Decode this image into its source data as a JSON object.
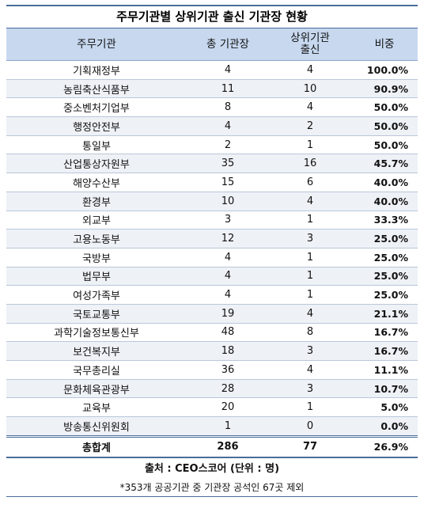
{
  "title": "주무기관별 상위기관 출신 기관장 현황",
  "headers": {
    "ministry": "주무기관",
    "total": "총 기관장",
    "upper_line1": "상위기관",
    "upper_line2": "출신",
    "ratio": "비중"
  },
  "rows": [
    {
      "ministry": "기획재정부",
      "total": "4",
      "upper": "4",
      "ratio": "100.0%"
    },
    {
      "ministry": "농림축산식품부",
      "total": "11",
      "upper": "10",
      "ratio": "90.9%"
    },
    {
      "ministry": "중소벤처기업부",
      "total": "8",
      "upper": "4",
      "ratio": "50.0%"
    },
    {
      "ministry": "행정안전부",
      "total": "4",
      "upper": "2",
      "ratio": "50.0%"
    },
    {
      "ministry": "통일부",
      "total": "2",
      "upper": "1",
      "ratio": "50.0%"
    },
    {
      "ministry": "산업통상자원부",
      "total": "35",
      "upper": "16",
      "ratio": "45.7%"
    },
    {
      "ministry": "해양수산부",
      "total": "15",
      "upper": "6",
      "ratio": "40.0%"
    },
    {
      "ministry": "환경부",
      "total": "10",
      "upper": "4",
      "ratio": "40.0%"
    },
    {
      "ministry": "외교부",
      "total": "3",
      "upper": "1",
      "ratio": "33.3%"
    },
    {
      "ministry": "고용노동부",
      "total": "12",
      "upper": "3",
      "ratio": "25.0%"
    },
    {
      "ministry": "국방부",
      "total": "4",
      "upper": "1",
      "ratio": "25.0%"
    },
    {
      "ministry": "법무부",
      "total": "4",
      "upper": "1",
      "ratio": "25.0%"
    },
    {
      "ministry": "여성가족부",
      "total": "4",
      "upper": "1",
      "ratio": "25.0%"
    },
    {
      "ministry": "국토교통부",
      "total": "19",
      "upper": "4",
      "ratio": "21.1%"
    },
    {
      "ministry": "과학기술정보통신부",
      "total": "48",
      "upper": "8",
      "ratio": "16.7%"
    },
    {
      "ministry": "보건복지부",
      "total": "18",
      "upper": "3",
      "ratio": "16.7%"
    },
    {
      "ministry": "국무총리실",
      "total": "36",
      "upper": "4",
      "ratio": "11.1%"
    },
    {
      "ministry": "문화체육관광부",
      "total": "28",
      "upper": "3",
      "ratio": "10.7%"
    },
    {
      "ministry": "교육부",
      "total": "20",
      "upper": "1",
      "ratio": "5.0%"
    },
    {
      "ministry": "방송통신위원회",
      "total": "1",
      "upper": "0",
      "ratio": "0.0%"
    }
  ],
  "total_row": {
    "label": "총합계",
    "total": "286",
    "upper": "77",
    "ratio": "26.9%"
  },
  "source": "출처 : CEO스코어 (단위 : 명)",
  "note": "*353개 공공기관 중 기관장 공석인 67곳 제외",
  "colors": {
    "header_bg": "#c7d8ef",
    "stripe_bg": "#eef1f6",
    "rule": "#4a6d9b"
  }
}
